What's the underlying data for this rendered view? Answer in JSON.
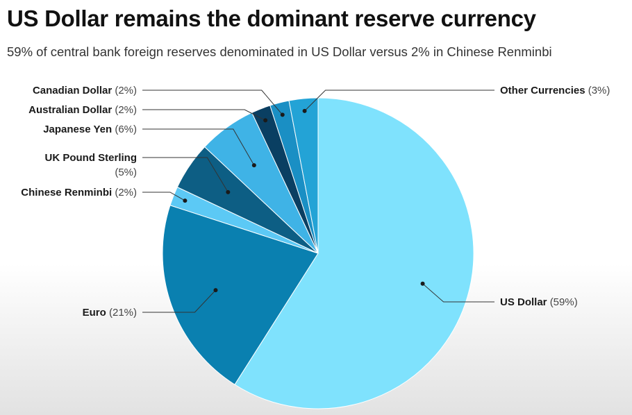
{
  "chart_data": {
    "type": "pie",
    "title": "US Dollar remains the dominant reserve currency",
    "subtitle": "59% of central bank foreign reserves denominated in US Dollar versus 2% in  Chinese Renminbi",
    "slices": [
      {
        "label": "US Dollar",
        "value": 59,
        "pct_text": "(59%)",
        "color": "#7fe2fd"
      },
      {
        "label": "Euro",
        "value": 21,
        "pct_text": "(21%)",
        "color": "#0a80b0"
      },
      {
        "label": "Chinese Renminbi",
        "value": 2,
        "pct_text": "(2%)",
        "color": "#5cc9f5"
      },
      {
        "label": "UK Pound Sterling",
        "value": 5,
        "pct_text": "(5%)",
        "color": "#0d5e84"
      },
      {
        "label": "Japanese Yen",
        "value": 6,
        "pct_text": "(6%)",
        "color": "#3fb3e6"
      },
      {
        "label": "Australian Dollar",
        "value": 2,
        "pct_text": "(2%)",
        "color": "#0a3f62"
      },
      {
        "label": "Canadian Dollar",
        "value": 2,
        "pct_text": "(2%)",
        "color": "#1a8fc4"
      },
      {
        "label": "Other Currencies",
        "value": 3,
        "pct_text": "(3%)",
        "color": "#23a3d6"
      }
    ]
  }
}
